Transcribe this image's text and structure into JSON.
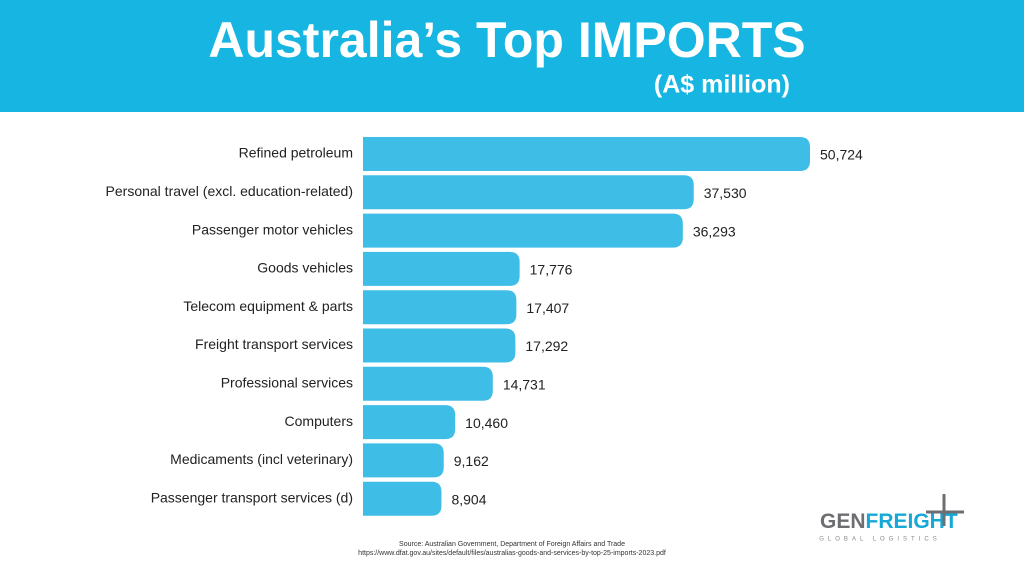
{
  "chart_data": {
    "type": "bar",
    "orientation": "horizontal",
    "title": "Australia’s Top IMPORTS",
    "subtitle": "(A$ million)",
    "categories": [
      "Refined petroleum",
      "Personal travel (excl. education-related)",
      "Passenger motor vehicles",
      "Goods vehicles",
      "Telecom equipment & parts",
      "Freight transport services",
      "Professional services",
      "Computers",
      "Medicaments (incl veterinary)",
      "Passenger transport services (d)"
    ],
    "values": [
      50724,
      37530,
      36293,
      17776,
      17407,
      17292,
      14731,
      10460,
      9162,
      8904
    ],
    "value_labels": [
      "50,724",
      "37,530",
      "36,293",
      "17,776",
      "17,407",
      "17,292",
      "14,731",
      "10,460",
      "9,162",
      "8,904"
    ],
    "color": "#3ebee6",
    "source": [
      "Source: Australian Government, Department of Foreign Affairs and Trade",
      "https://www.dfat.gov.au/sites/default/files/australias-goods-and-services-by-top-25-imports-2023.pdf"
    ]
  },
  "logo": {
    "name_parts": [
      "GEN",
      "FREIGHT"
    ],
    "tagline": "GLOBAL LOGISTICS"
  }
}
